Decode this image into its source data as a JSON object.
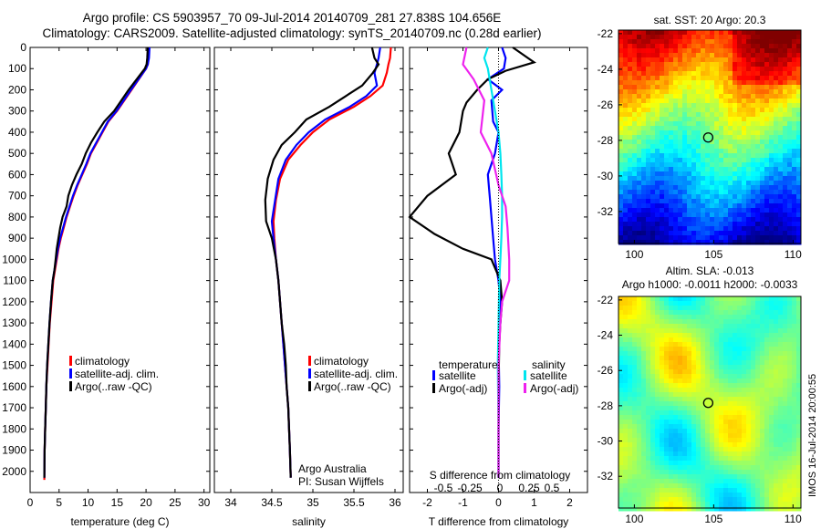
{
  "header": {
    "line1": "Argo profile: CS 5903957_70 09-Jul-2014 20140709_281 27.838S 104.656E",
    "line2": "Climatology: CARS2009. Satellite-adjusted climatology: synTS_20140709.nc (0.28d earlier)"
  },
  "side_stamp": "IMOS 16-Jul-2014 20:00:55",
  "colors": {
    "climatology": "#ff0000",
    "satellite": "#0000ff",
    "argo": "#000000",
    "sal_satellite": "#00e5ee",
    "sal_argo": "#ee22ee"
  },
  "chart_data": [
    {
      "type": "line",
      "panel": "temperature",
      "xlabel": "temperature (deg C)",
      "ylabel": "",
      "xlim": [
        0,
        31
      ],
      "ylim": [
        2100,
        0
      ],
      "xticks": [
        0,
        5,
        10,
        15,
        20,
        25,
        30
      ],
      "yticks": [
        0,
        100,
        200,
        300,
        400,
        500,
        600,
        700,
        800,
        900,
        1000,
        1100,
        1200,
        1300,
        1400,
        1500,
        1600,
        1700,
        1800,
        1900,
        2000
      ],
      "legend": [
        "climatology",
        "satellite-adj. clim.",
        "Argo(..raw -QC)"
      ],
      "series": [
        {
          "name": "climatology",
          "x": [
            20.5,
            20.4,
            20.3,
            20.0,
            17.5,
            15.0,
            13.5,
            12.5,
            11.5,
            10.5,
            9.8,
            9.0,
            8.2,
            7.5,
            6.9,
            6.3,
            5.8,
            5.3,
            4.9,
            4.6,
            4.3,
            4.0,
            3.7,
            3.4,
            3.2,
            3.0,
            2.8,
            2.7,
            2.6,
            2.5,
            2.45
          ],
          "y": [
            0,
            50,
            80,
            100,
            200,
            300,
            350,
            400,
            450,
            500,
            550,
            600,
            650,
            700,
            750,
            800,
            850,
            900,
            950,
            1000,
            1050,
            1100,
            1200,
            1300,
            1400,
            1500,
            1600,
            1700,
            1800,
            1900,
            2040
          ]
        },
        {
          "name": "satellite-adj. clim.",
          "x": [
            20.6,
            20.5,
            20.3,
            20.0,
            17.4,
            14.9,
            13.4,
            12.4,
            11.4,
            10.4,
            9.7,
            8.9,
            8.1,
            7.4,
            6.8,
            6.2,
            5.7,
            5.2,
            4.8,
            4.5,
            4.2,
            3.9,
            3.6,
            3.35,
            3.15,
            2.95,
            2.8,
            2.7,
            2.6,
            2.5,
            2.45
          ],
          "y": [
            0,
            50,
            80,
            100,
            200,
            300,
            350,
            400,
            450,
            500,
            550,
            600,
            650,
            700,
            750,
            800,
            850,
            900,
            950,
            1000,
            1050,
            1100,
            1200,
            1300,
            1400,
            1500,
            1600,
            1700,
            1800,
            1900,
            2030
          ]
        },
        {
          "name": "Argo(..raw -QC)",
          "x": [
            20.3,
            20.2,
            20.1,
            19.8,
            17.0,
            14.5,
            12.8,
            11.6,
            10.5,
            9.6,
            8.9,
            8.0,
            7.2,
            6.6,
            6.3,
            5.6,
            5.2,
            4.9,
            4.6,
            4.4,
            4.2,
            3.9,
            3.6,
            3.35,
            3.15,
            2.95,
            2.8,
            2.7,
            2.6,
            2.5,
            2.45
          ],
          "y": [
            0,
            50,
            80,
            100,
            200,
            300,
            350,
            400,
            450,
            500,
            550,
            600,
            650,
            700,
            750,
            800,
            850,
            900,
            950,
            1000,
            1050,
            1100,
            1200,
            1300,
            1400,
            1500,
            1600,
            1700,
            1800,
            1900,
            2030
          ]
        }
      ]
    },
    {
      "type": "line",
      "panel": "salinity",
      "xlabel": "salinity",
      "ylabel": "",
      "xlim": [
        33.8,
        36.1
      ],
      "ylim": [
        2100,
        0
      ],
      "xticks": [
        34,
        34.5,
        35,
        35.5,
        36
      ],
      "legend": [
        "climatology",
        "satellite-adj. clim.",
        "Argo(..raw -QC)"
      ],
      "annotations": [
        "Argo Australia",
        "PI: Susan Wijffels"
      ],
      "series": [
        {
          "name": "climatology",
          "x": [
            35.95,
            35.94,
            35.92,
            35.9,
            35.85,
            35.7,
            35.5,
            35.2,
            35.0,
            34.85,
            34.7,
            34.6,
            34.55,
            34.52,
            34.53,
            34.55,
            34.58,
            34.6,
            34.62,
            34.64,
            34.66,
            34.68,
            34.7,
            34.71,
            34.72,
            34.73
          ],
          "y": [
            0,
            50,
            80,
            120,
            180,
            230,
            280,
            340,
            400,
            460,
            530,
            620,
            720,
            820,
            900,
            1000,
            1100,
            1200,
            1300,
            1400,
            1500,
            1600,
            1700,
            1800,
            1900,
            2030
          ]
        },
        {
          "name": "satellite-adj. clim.",
          "x": [
            35.82,
            35.8,
            35.78,
            35.75,
            35.78,
            35.65,
            35.45,
            35.15,
            34.95,
            34.8,
            34.67,
            34.58,
            34.54,
            34.5,
            34.52,
            34.55,
            34.58,
            34.6,
            34.62,
            34.64,
            34.66,
            34.68,
            34.7,
            34.71,
            34.72,
            34.73
          ],
          "y": [
            0,
            50,
            80,
            120,
            180,
            230,
            280,
            340,
            400,
            460,
            530,
            620,
            720,
            820,
            900,
            1000,
            1100,
            1200,
            1300,
            1400,
            1500,
            1600,
            1700,
            1800,
            1900,
            2030
          ]
        },
        {
          "name": "Argo(..raw -QC)",
          "x": [
            35.72,
            35.75,
            35.8,
            35.73,
            35.6,
            35.4,
            35.2,
            34.92,
            34.78,
            34.62,
            34.52,
            34.45,
            34.42,
            34.43,
            34.5,
            34.55,
            34.58,
            34.6,
            34.62,
            34.65,
            34.67,
            34.68,
            34.7,
            34.71,
            34.72,
            34.73
          ],
          "y": [
            0,
            50,
            80,
            120,
            180,
            230,
            280,
            340,
            400,
            460,
            530,
            620,
            720,
            820,
            900,
            1000,
            1100,
            1200,
            1300,
            1400,
            1500,
            1600,
            1700,
            1800,
            1900,
            2030
          ]
        }
      ]
    },
    {
      "type": "line",
      "panel": "difference",
      "xlabel": "T difference from climatology",
      "top_label": "S difference from climatology",
      "xlim": [
        -2.5,
        2.5
      ],
      "ylim": [
        2100,
        0
      ],
      "xticks": [
        -2,
        -1,
        0,
        1,
        2
      ],
      "top_ticks": [
        "-0.5",
        "-0.25",
        "0",
        "0.25",
        "0.5"
      ],
      "legend_titles": [
        "temperature",
        "salinity"
      ],
      "legend": [
        "satellite",
        "Argo(-adj)",
        "satellite",
        "Argo(-adj)"
      ],
      "series": [
        {
          "name": "satellite",
          "x": [
            0.1,
            0.2,
            0.15,
            -0.3,
            0.1,
            -0.2,
            -0.15,
            0.0,
            -0.1,
            -0.3,
            -0.25,
            -0.2,
            -0.15,
            -0.1,
            0.0,
            0.05,
            0.05,
            0.0,
            0.02,
            0.0,
            0.0
          ],
          "y": [
            0,
            50,
            100,
            150,
            200,
            250,
            350,
            400,
            500,
            600,
            700,
            800,
            900,
            1000,
            1100,
            1200,
            1300,
            1400,
            1600,
            1800,
            2030
          ]
        },
        {
          "name": "Argo(-adj)",
          "x": [
            0.4,
            1.0,
            0.2,
            -0.3,
            -0.6,
            -0.9,
            -1.0,
            -1.1,
            -1.4,
            -1.2,
            -2.0,
            -2.5,
            -1.8,
            -1.0,
            -0.2,
            0.05,
            0.1,
            0.05,
            0.02,
            0.0,
            0.0
          ],
          "y": [
            0,
            70,
            110,
            150,
            200,
            260,
            300,
            400,
            500,
            600,
            700,
            800,
            880,
            950,
            1000,
            1100,
            1200,
            1300,
            1400,
            1600,
            2030
          ]
        },
        {
          "name": "satellite",
          "x": [
            -0.3,
            -0.4,
            -0.3,
            -0.2,
            -0.1,
            0.0,
            0.05,
            0.08,
            0.1,
            0.1,
            0.08,
            0.05,
            0.02,
            0.0,
            -0.02,
            0.0,
            0.0
          ],
          "y": [
            0,
            50,
            100,
            200,
            300,
            400,
            500,
            600,
            700,
            800,
            900,
            1000,
            1100,
            1300,
            1500,
            1800,
            2030
          ]
        },
        {
          "name": "Argo(-adj)",
          "x": [
            -0.9,
            -1.0,
            -0.7,
            -0.4,
            -0.5,
            -0.2,
            0.0,
            0.2,
            0.25,
            0.3,
            0.3,
            0.1,
            0.05,
            0.0,
            0.0,
            0.0
          ],
          "y": [
            0,
            80,
            150,
            250,
            400,
            500,
            650,
            750,
            850,
            1000,
            1100,
            1200,
            1300,
            1500,
            1800,
            2030
          ]
        }
      ]
    },
    {
      "type": "heatmap",
      "panel": "sst_map",
      "title": "sat. SST: 20 Argo: 20.3",
      "xlim": [
        99,
        110.5
      ],
      "ylim": [
        -33.8,
        -21.8
      ],
      "xticks": [
        100,
        105,
        110
      ],
      "yticks": [
        -22,
        -24,
        -26,
        -28,
        -30,
        -32
      ],
      "marker": {
        "lon": 104.656,
        "lat": -27.838
      }
    },
    {
      "type": "heatmap",
      "panel": "sla_map",
      "title": "Altim. SLA: -0.013",
      "subtitle": "Argo h1000: -0.0011 h2000: -0.0033",
      "xlim": [
        99,
        110.5
      ],
      "ylim": [
        -33.8,
        -21.8
      ],
      "xticks": [
        100,
        105,
        110
      ],
      "yticks": [
        -22,
        -24,
        -26,
        -28,
        -30,
        -32
      ],
      "marker": {
        "lon": 104.656,
        "lat": -27.838
      }
    }
  ]
}
